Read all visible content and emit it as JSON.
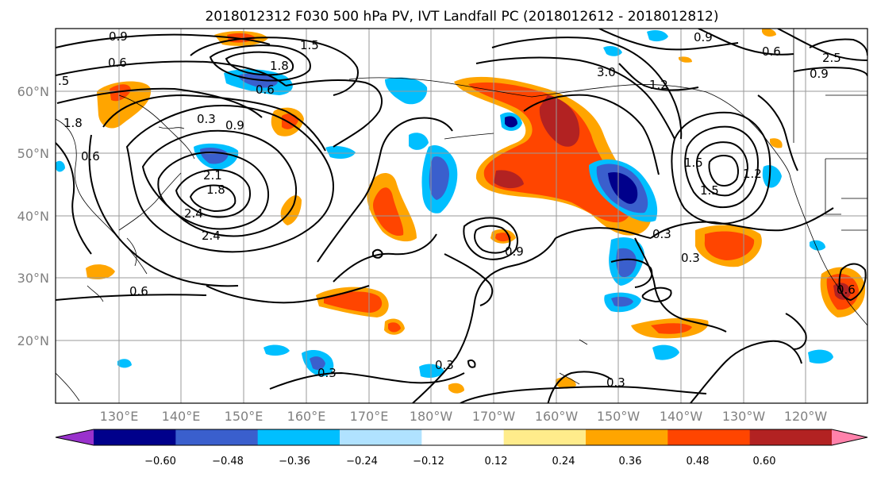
{
  "title": "2018012312 F030 500 hPa PV, IVT Landfall PC (2018012612 - 2018012812)",
  "lat_labels": [
    "60°N",
    "50°N",
    "40°N",
    "30°N",
    "20°N"
  ],
  "lon_labels": [
    "130°E",
    "140°E",
    "150°E",
    "160°E",
    "170°E",
    "180°W",
    "170°W",
    "160°W",
    "150°W",
    "140°W",
    "130°W",
    "120°W"
  ],
  "colorbar": {
    "ticks": [
      "−0.60",
      "−0.48",
      "−0.36",
      "−0.24",
      "−0.12",
      "0.12",
      "0.24",
      "0.36",
      "0.48",
      "0.60"
    ],
    "colors": [
      "#9932CC",
      "#00008B",
      "#3A5FCD",
      "#00BFFF",
      "#B0E2FF",
      "#FFFFFF",
      "#FFEC8B",
      "#FFA500",
      "#FF4500",
      "#B22222",
      "#FF82AB"
    ]
  },
  "contour_labels": [
    "0.9",
    "0.6",
    "1.5",
    "1.8",
    "0.6",
    ".5",
    "1.8",
    "0.3",
    "0.9",
    "2.1",
    "1.8",
    "2.4",
    "2.4",
    "0.6",
    "0.6",
    "0.3",
    "0.9",
    "0.3",
    "0.3",
    "0.3",
    "0.3",
    "3.0",
    "1.2",
    "0.9",
    "0.6",
    "2.5",
    "0.9",
    "1.5",
    "1.5",
    "1.2",
    "0.6"
  ],
  "colors": {
    "negative_strong": "#00008B",
    "negative_mid": "#3A5FCD",
    "negative_light": "#00BFFF",
    "negative_faint": "#B0E2FF",
    "positive_faint": "#FFEC8B",
    "positive_light": "#FFA500",
    "positive_mid": "#FF4500",
    "positive_strong": "#B22222"
  }
}
